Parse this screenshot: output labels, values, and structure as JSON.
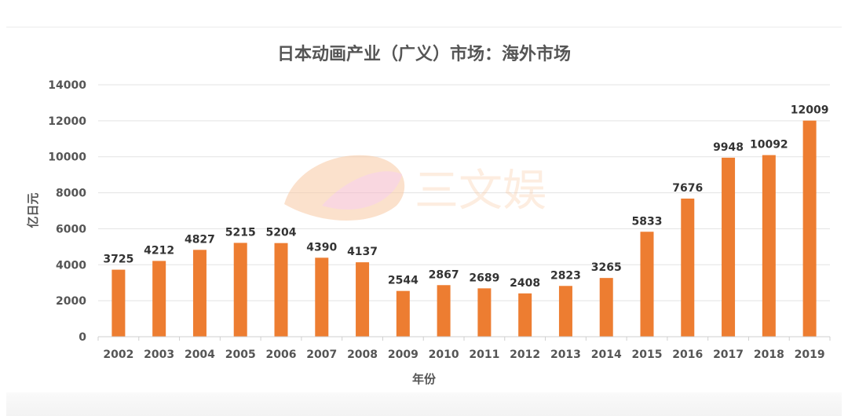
{
  "chart_data": {
    "type": "bar",
    "title": "日本动画产业（广义）市场：海外市场",
    "xlabel": "年份",
    "ylabel": "亿日元",
    "categories": [
      "2002",
      "2003",
      "2004",
      "2005",
      "2006",
      "2007",
      "2008",
      "2009",
      "2010",
      "2011",
      "2012",
      "2013",
      "2014",
      "2015",
      "2016",
      "2017",
      "2018",
      "2019"
    ],
    "series": [
      {
        "values": [
          3725,
          4212,
          4827,
          5215,
          5204,
          4390,
          4137,
          2544,
          2867,
          2689,
          2408,
          2823,
          3265,
          5833,
          7676,
          9948,
          10092,
          12009
        ]
      }
    ],
    "ylim": [
      0,
      14000
    ],
    "yticks": [
      0,
      2000,
      4000,
      6000,
      8000,
      10000,
      12000,
      14000
    ],
    "grid": true,
    "bar_color": "#ED7D31",
    "watermark": "三文娱"
  }
}
